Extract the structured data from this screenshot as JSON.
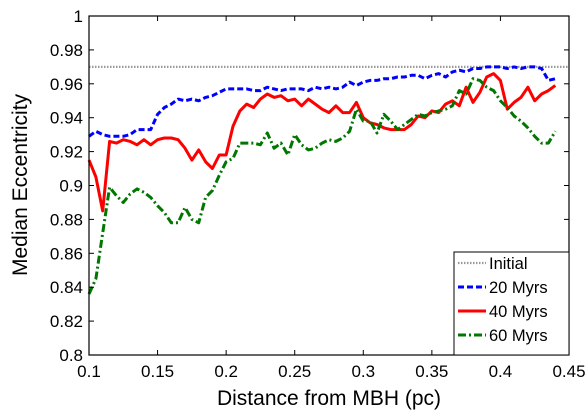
{
  "chart_data": {
    "type": "line",
    "title": "",
    "xlabel": "Distance from MBH (pc)",
    "ylabel": "Median Eccentricity",
    "xlim": [
      0.1,
      0.45
    ],
    "ylim": [
      0.8,
      1.0
    ],
    "x_ticks": [
      "0.1",
      "0.15",
      "0.2",
      "0.25",
      "0.3",
      "0.35",
      "0.4",
      "0.45"
    ],
    "y_ticks": [
      "0.8",
      "0.82",
      "0.84",
      "0.86",
      "0.88",
      "0.9",
      "0.92",
      "0.94",
      "0.96",
      "0.98",
      "1"
    ],
    "grid": false,
    "legend_position": "lower-right",
    "series": [
      {
        "name": "Initial",
        "color": "#999999",
        "style": "dotted",
        "x": [
          0.1,
          0.45
        ],
        "y": [
          0.97,
          0.97
        ]
      },
      {
        "name": "20 Myrs",
        "color": "#0000ff",
        "style": "dashed",
        "x": [
          0.1,
          0.105,
          0.11,
          0.115,
          0.12,
          0.125,
          0.13,
          0.135,
          0.14,
          0.145,
          0.15,
          0.155,
          0.16,
          0.165,
          0.17,
          0.175,
          0.18,
          0.185,
          0.19,
          0.195,
          0.2,
          0.205,
          0.21,
          0.215,
          0.22,
          0.225,
          0.23,
          0.235,
          0.24,
          0.245,
          0.25,
          0.255,
          0.26,
          0.265,
          0.27,
          0.275,
          0.28,
          0.285,
          0.29,
          0.295,
          0.3,
          0.305,
          0.31,
          0.315,
          0.32,
          0.325,
          0.33,
          0.335,
          0.34,
          0.345,
          0.35,
          0.355,
          0.36,
          0.365,
          0.37,
          0.375,
          0.38,
          0.385,
          0.39,
          0.395,
          0.4,
          0.405,
          0.41,
          0.415,
          0.42,
          0.425,
          0.43,
          0.435,
          0.44
        ],
        "y": [
          0.929,
          0.932,
          0.93,
          0.929,
          0.929,
          0.929,
          0.93,
          0.933,
          0.933,
          0.933,
          0.942,
          0.946,
          0.948,
          0.951,
          0.95,
          0.951,
          0.95,
          0.952,
          0.953,
          0.955,
          0.957,
          0.957,
          0.957,
          0.957,
          0.956,
          0.956,
          0.958,
          0.957,
          0.956,
          0.957,
          0.957,
          0.957,
          0.956,
          0.958,
          0.957,
          0.958,
          0.957,
          0.958,
          0.961,
          0.959,
          0.961,
          0.962,
          0.962,
          0.963,
          0.963,
          0.964,
          0.964,
          0.965,
          0.965,
          0.963,
          0.965,
          0.966,
          0.964,
          0.967,
          0.968,
          0.967,
          0.969,
          0.969,
          0.97,
          0.97,
          0.97,
          0.969,
          0.97,
          0.969,
          0.97,
          0.97,
          0.969,
          0.962,
          0.963
        ]
      },
      {
        "name": "40 Myrs",
        "color": "#ff0000",
        "style": "solid",
        "x": [
          0.1,
          0.105,
          0.11,
          0.115,
          0.12,
          0.125,
          0.13,
          0.135,
          0.14,
          0.145,
          0.15,
          0.155,
          0.16,
          0.165,
          0.17,
          0.175,
          0.18,
          0.185,
          0.19,
          0.195,
          0.2,
          0.205,
          0.21,
          0.215,
          0.22,
          0.225,
          0.23,
          0.235,
          0.24,
          0.245,
          0.25,
          0.255,
          0.26,
          0.265,
          0.27,
          0.275,
          0.28,
          0.285,
          0.29,
          0.295,
          0.3,
          0.305,
          0.31,
          0.315,
          0.32,
          0.325,
          0.33,
          0.335,
          0.34,
          0.345,
          0.35,
          0.355,
          0.36,
          0.365,
          0.37,
          0.375,
          0.38,
          0.385,
          0.39,
          0.395,
          0.4,
          0.405,
          0.41,
          0.415,
          0.42,
          0.425,
          0.43,
          0.435,
          0.44
        ],
        "y": [
          0.915,
          0.905,
          0.885,
          0.926,
          0.925,
          0.927,
          0.926,
          0.924,
          0.927,
          0.924,
          0.927,
          0.928,
          0.928,
          0.927,
          0.922,
          0.915,
          0.921,
          0.914,
          0.91,
          0.918,
          0.918,
          0.935,
          0.944,
          0.948,
          0.946,
          0.951,
          0.954,
          0.952,
          0.953,
          0.95,
          0.951,
          0.947,
          0.951,
          0.948,
          0.945,
          0.943,
          0.947,
          0.943,
          0.943,
          0.949,
          0.94,
          0.937,
          0.936,
          0.934,
          0.933,
          0.933,
          0.933,
          0.936,
          0.941,
          0.94,
          0.944,
          0.943,
          0.948,
          0.95,
          0.947,
          0.958,
          0.949,
          0.955,
          0.964,
          0.966,
          0.962,
          0.945,
          0.949,
          0.952,
          0.958,
          0.95,
          0.954,
          0.956,
          0.959
        ]
      },
      {
        "name": "60 Myrs",
        "color": "#007700",
        "style": "dashdot",
        "x": [
          0.1,
          0.105,
          0.11,
          0.115,
          0.12,
          0.125,
          0.13,
          0.135,
          0.14,
          0.145,
          0.15,
          0.155,
          0.16,
          0.165,
          0.17,
          0.175,
          0.18,
          0.185,
          0.19,
          0.195,
          0.2,
          0.205,
          0.21,
          0.215,
          0.22,
          0.225,
          0.23,
          0.235,
          0.24,
          0.245,
          0.25,
          0.255,
          0.26,
          0.265,
          0.27,
          0.275,
          0.28,
          0.285,
          0.29,
          0.295,
          0.3,
          0.305,
          0.31,
          0.315,
          0.32,
          0.325,
          0.33,
          0.335,
          0.34,
          0.345,
          0.35,
          0.355,
          0.36,
          0.365,
          0.37,
          0.375,
          0.38,
          0.385,
          0.39,
          0.395,
          0.4,
          0.405,
          0.41,
          0.415,
          0.42,
          0.425,
          0.43,
          0.435,
          0.44
        ],
        "y": [
          0.836,
          0.845,
          0.872,
          0.899,
          0.894,
          0.89,
          0.895,
          0.898,
          0.896,
          0.893,
          0.888,
          0.884,
          0.878,
          0.878,
          0.887,
          0.88,
          0.878,
          0.893,
          0.897,
          0.906,
          0.914,
          0.916,
          0.925,
          0.925,
          0.925,
          0.924,
          0.931,
          0.922,
          0.925,
          0.918,
          0.93,
          0.924,
          0.921,
          0.922,
          0.925,
          0.927,
          0.926,
          0.928,
          0.932,
          0.945,
          0.938,
          0.938,
          0.931,
          0.942,
          0.938,
          0.933,
          0.936,
          0.939,
          0.942,
          0.941,
          0.943,
          0.944,
          0.945,
          0.947,
          0.956,
          0.954,
          0.963,
          0.962,
          0.958,
          0.956,
          0.95,
          0.946,
          0.941,
          0.938,
          0.934,
          0.929,
          0.925,
          0.925,
          0.932
        ]
      }
    ]
  }
}
